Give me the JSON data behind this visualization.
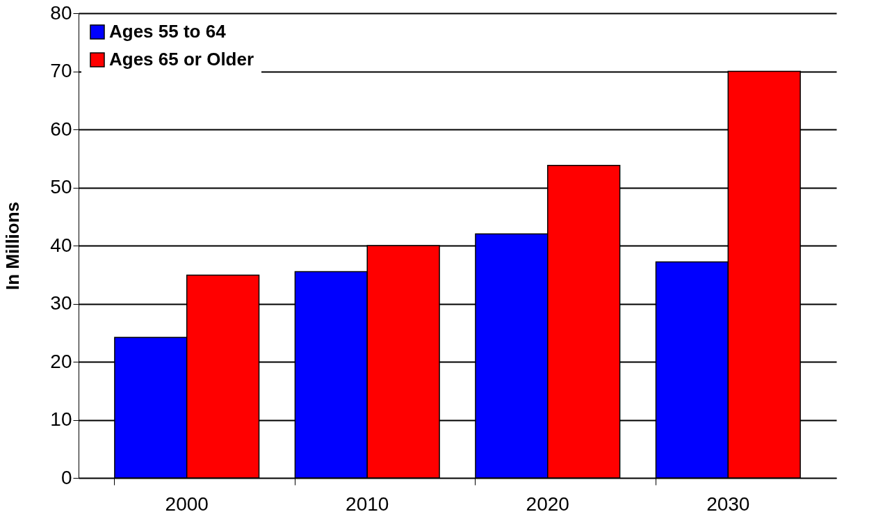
{
  "chart_data": {
    "type": "bar",
    "ylabel": "In Millions",
    "categories": [
      "2000",
      "2010",
      "2020",
      "2030"
    ],
    "series": [
      {
        "name": "Ages 55 to 64",
        "color": "#0000ff",
        "values": [
          24.2,
          35.5,
          42.0,
          37.2
        ]
      },
      {
        "name": "Ages 65 or Older",
        "color": "#ff0000",
        "values": [
          34.9,
          40,
          53.8,
          70
        ]
      }
    ],
    "ylim": [
      0,
      80
    ],
    "yticks": [
      0,
      10,
      20,
      30,
      40,
      50,
      60,
      70,
      80
    ],
    "grid": "y",
    "legend": "top left"
  }
}
